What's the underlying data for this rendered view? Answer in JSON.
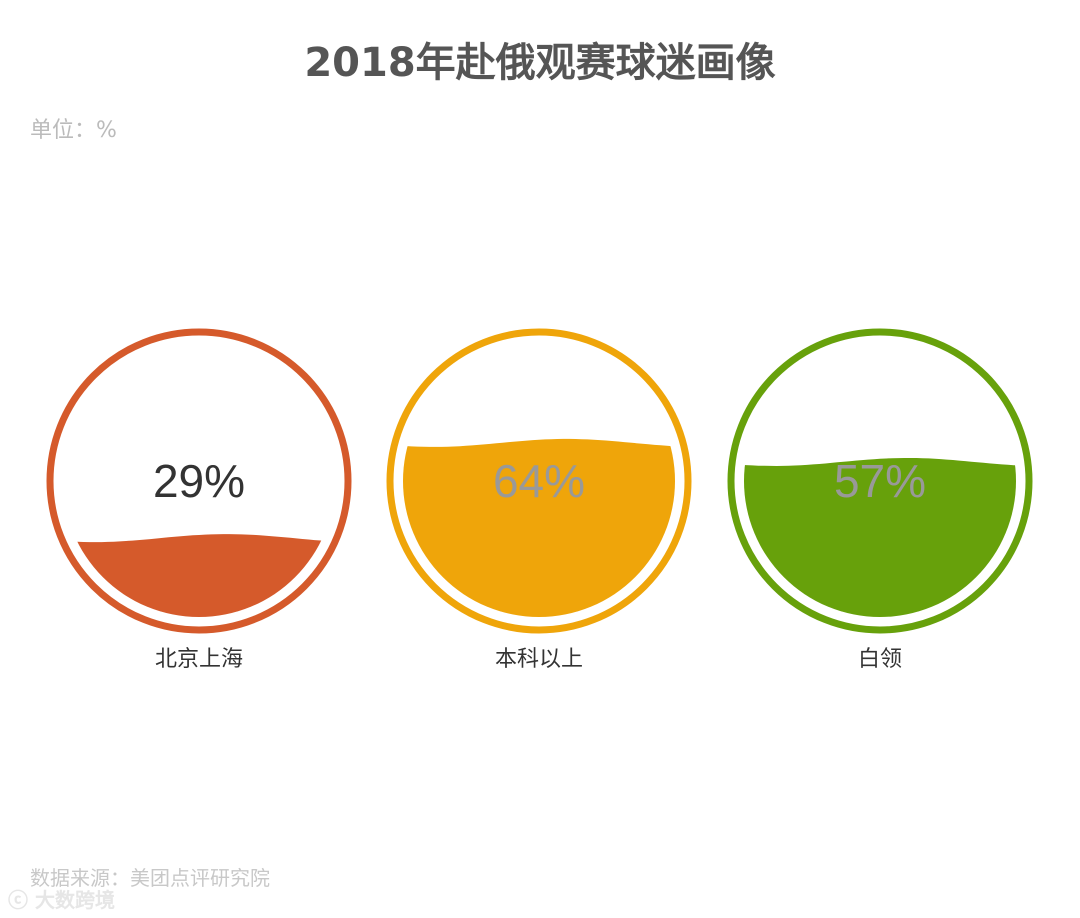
{
  "title": "2018年赴俄观赛球迷画像",
  "unit_label": "单位：%",
  "source": "数据来源：美团点评研究院",
  "watermark": "大数跨境",
  "chart_data": {
    "type": "liquid-gauge",
    "title": "2018年赴俄观赛球迷画像",
    "unit": "%",
    "categories": [
      "北京上海",
      "本科以上",
      "白领"
    ],
    "values": [
      29,
      64,
      57
    ],
    "value_labels": [
      "29%",
      "64%",
      "57%"
    ],
    "colors": [
      "#d55a2b",
      "#efa50a",
      "#67a10b"
    ],
    "ylim": [
      0,
      100
    ],
    "legend": "none",
    "grid": false
  }
}
